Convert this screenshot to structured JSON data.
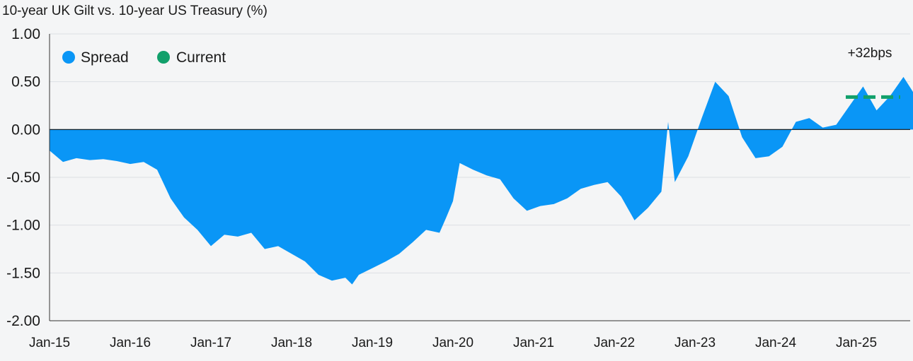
{
  "chart_data": {
    "type": "area",
    "title": "10-year UK Gilt vs. 10-year US Treasury (%)",
    "xlabel": "",
    "ylabel": "",
    "ylim": [
      -2.0,
      1.0
    ],
    "grid": true,
    "legend_position": "top-left",
    "y_ticks": [
      "1.00",
      "0.50",
      "0.00",
      "-0.50",
      "-1.00",
      "-1.50",
      "-2.00"
    ],
    "x_ticks": [
      "Jan-15",
      "Jan-16",
      "Jan-17",
      "Jan-18",
      "Jan-19",
      "Jan-20",
      "Jan-21",
      "Jan-22",
      "Jan-23",
      "Jan-24",
      "Jan-25"
    ],
    "series": [
      {
        "name": "Spread",
        "color": "#0a96f6",
        "points": [
          [
            "Jan-15",
            -0.22
          ],
          [
            "Mar-15",
            -0.34
          ],
          [
            "May-15",
            -0.3
          ],
          [
            "Jul-15",
            -0.32
          ],
          [
            "Sep-15",
            -0.31
          ],
          [
            "Nov-15",
            -0.33
          ],
          [
            "Jan-16",
            -0.36
          ],
          [
            "Mar-16",
            -0.34
          ],
          [
            "May-16",
            -0.42
          ],
          [
            "Jul-16",
            -0.72
          ],
          [
            "Sep-16",
            -0.92
          ],
          [
            "Nov-16",
            -1.05
          ],
          [
            "Jan-17",
            -1.22
          ],
          [
            "Mar-17",
            -1.1
          ],
          [
            "May-17",
            -1.12
          ],
          [
            "Jul-17",
            -1.08
          ],
          [
            "Sep-17",
            -1.25
          ],
          [
            "Nov-17",
            -1.22
          ],
          [
            "Jan-18",
            -1.3
          ],
          [
            "Mar-18",
            -1.38
          ],
          [
            "May-18",
            -1.52
          ],
          [
            "Jul-18",
            -1.58
          ],
          [
            "Sep-18",
            -1.55
          ],
          [
            "Oct-18",
            -1.62
          ],
          [
            "Nov-18",
            -1.52
          ],
          [
            "Jan-19",
            -1.45
          ],
          [
            "Mar-19",
            -1.38
          ],
          [
            "May-19",
            -1.3
          ],
          [
            "Jul-19",
            -1.18
          ],
          [
            "Sep-19",
            -1.05
          ],
          [
            "Nov-19",
            -1.08
          ],
          [
            "Dec-19",
            -0.92
          ],
          [
            "Jan-20",
            -0.75
          ],
          [
            "Feb-20",
            -0.35
          ],
          [
            "Apr-20",
            -0.42
          ],
          [
            "Jun-20",
            -0.48
          ],
          [
            "Aug-20",
            -0.52
          ],
          [
            "Oct-20",
            -0.72
          ],
          [
            "Dec-20",
            -0.85
          ],
          [
            "Feb-21",
            -0.8
          ],
          [
            "Apr-21",
            -0.78
          ],
          [
            "Jun-21",
            -0.72
          ],
          [
            "Aug-21",
            -0.62
          ],
          [
            "Oct-21",
            -0.58
          ],
          [
            "Dec-21",
            -0.55
          ],
          [
            "Feb-22",
            -0.7
          ],
          [
            "Apr-22",
            -0.95
          ],
          [
            "Jun-22",
            -0.82
          ],
          [
            "Aug-22",
            -0.65
          ],
          [
            "Sep-22",
            0.08
          ],
          [
            "Oct-22",
            -0.55
          ],
          [
            "Dec-22",
            -0.28
          ],
          [
            "Feb-23",
            0.12
          ],
          [
            "Apr-23",
            0.5
          ],
          [
            "Jun-23",
            0.35
          ],
          [
            "Aug-23",
            -0.08
          ],
          [
            "Oct-23",
            -0.3
          ],
          [
            "Dec-23",
            -0.28
          ],
          [
            "Feb-24",
            -0.18
          ],
          [
            "Apr-24",
            0.08
          ],
          [
            "Jun-24",
            0.12
          ],
          [
            "Aug-24",
            0.02
          ],
          [
            "Oct-24",
            0.05
          ],
          [
            "Dec-24",
            0.25
          ],
          [
            "Feb-25",
            0.45
          ],
          [
            "Apr-25",
            0.2
          ],
          [
            "Jun-25",
            0.35
          ],
          [
            "Aug-25",
            0.55
          ],
          [
            "Oct-25",
            0.33
          ]
        ]
      },
      {
        "name": "Current",
        "color": "#11a06b",
        "values": [
          0.34
        ]
      }
    ],
    "annotations": [
      "+32bps"
    ]
  }
}
